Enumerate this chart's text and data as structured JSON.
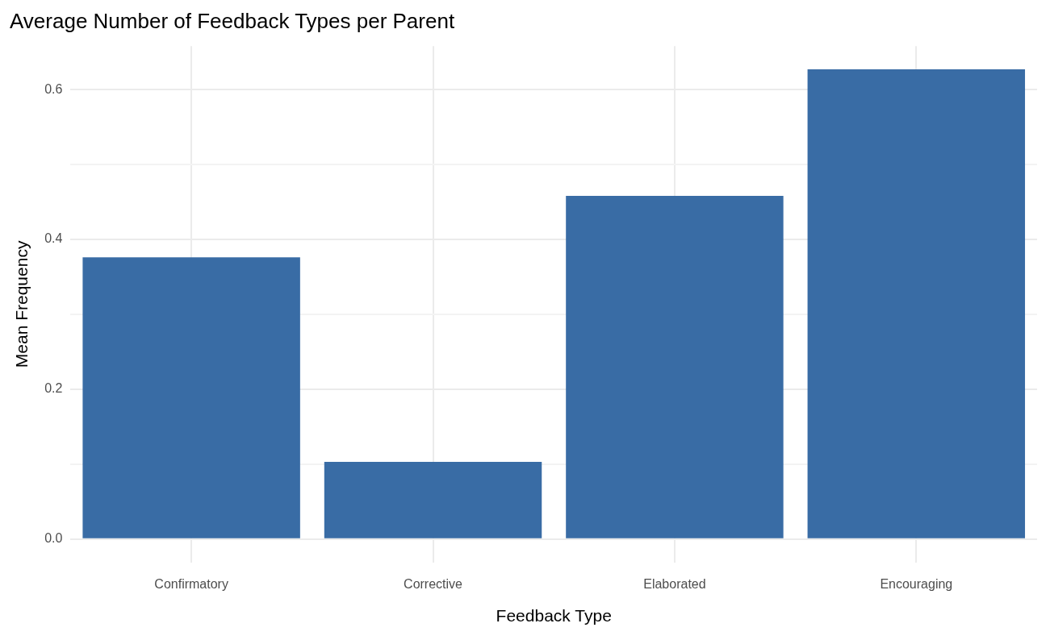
{
  "chart_data": {
    "type": "bar",
    "title": "Average Number of Feedback Types per Parent",
    "xlabel": "Feedback Type",
    "ylabel": "Mean Frequency",
    "categories": [
      "Confirmatory",
      "Corrective",
      "Elaborated",
      "Encouraging"
    ],
    "values": [
      0.376,
      0.103,
      0.458,
      0.627
    ],
    "color": "#396ca5",
    "ylim": [
      -0.031,
      0.658
    ],
    "yticks": [
      {
        "value": 0,
        "label": "0.0"
      },
      {
        "value": 0.1,
        "label": null
      },
      {
        "value": 0.2,
        "label": "0.2"
      },
      {
        "value": 0.3,
        "label": null
      },
      {
        "value": 0.4,
        "label": "0.4"
      },
      {
        "value": 0.5,
        "label": null
      },
      {
        "value": 0.6,
        "label": "0.6"
      }
    ],
    "grid": true,
    "legend": false
  }
}
